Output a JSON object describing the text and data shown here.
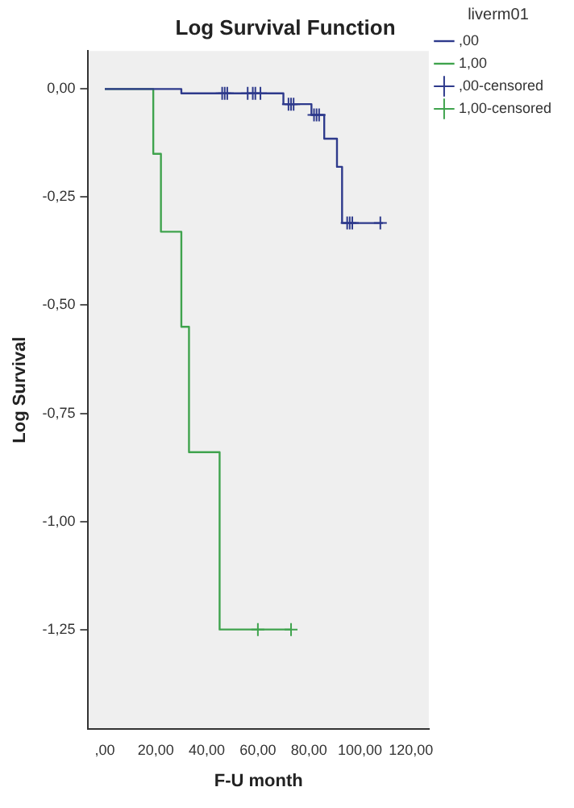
{
  "chart_data": {
    "type": "step",
    "title": "Log Survival Function",
    "xlabel": "F-U month",
    "ylabel": "Log Survival",
    "legend_title": "liverm01",
    "legend": "right",
    "grid": false,
    "xlim": [
      -6.5,
      127
    ],
    "ylim": [
      -1.48,
      0.088
    ],
    "xticks": [
      {
        "value": 0,
        "label": ",00"
      },
      {
        "value": 20,
        "label": "20,00"
      },
      {
        "value": 40,
        "label": "40,00"
      },
      {
        "value": 60,
        "label": "60,00"
      },
      {
        "value": 80,
        "label": "80,00"
      },
      {
        "value": 100,
        "label": "100,00"
      },
      {
        "value": 120,
        "label": "120,00"
      }
    ],
    "yticks": [
      {
        "value": 0,
        "label": "0,00"
      },
      {
        "value": -0.25,
        "label": "-0,25"
      },
      {
        "value": -0.5,
        "label": "-0,50"
      },
      {
        "value": -0.75,
        "label": "-0,75"
      },
      {
        "value": -1,
        "label": "-1,00"
      },
      {
        "value": -1.25,
        "label": "-1,25"
      }
    ],
    "series": [
      {
        "name": ",00",
        "color": "#2e3a8c",
        "marker": "none",
        "x": [
          0,
          30,
          70,
          81,
          86,
          91,
          93,
          109
        ],
        "values": [
          0,
          -0.01,
          -0.035,
          -0.06,
          -0.115,
          -0.18,
          -0.31,
          -0.31
        ]
      },
      {
        "name": "1,00",
        "color": "#3fa34d",
        "marker": "none",
        "x": [
          0,
          19,
          22,
          30,
          33,
          45,
          73
        ],
        "values": [
          0,
          -0.15,
          -0.33,
          -0.55,
          -0.84,
          -1.25,
          -1.25
        ]
      },
      {
        "name": ",00-censored",
        "type": "scatter",
        "color": "#2e3a8c",
        "marker": "cross",
        "x": [
          46,
          47,
          48,
          56,
          58,
          59,
          61,
          72,
          73,
          74,
          82,
          83,
          84,
          95,
          96,
          97,
          108
        ],
        "values": [
          -0.01,
          -0.01,
          -0.01,
          -0.01,
          -0.01,
          -0.01,
          -0.01,
          -0.035,
          -0.035,
          -0.035,
          -0.06,
          -0.06,
          -0.06,
          -0.31,
          -0.31,
          -0.31,
          -0.31
        ]
      },
      {
        "name": "1,00-censored",
        "type": "scatter",
        "color": "#3fa34d",
        "marker": "cross",
        "x": [
          60,
          73
        ],
        "values": [
          -1.25,
          -1.25
        ]
      }
    ]
  }
}
